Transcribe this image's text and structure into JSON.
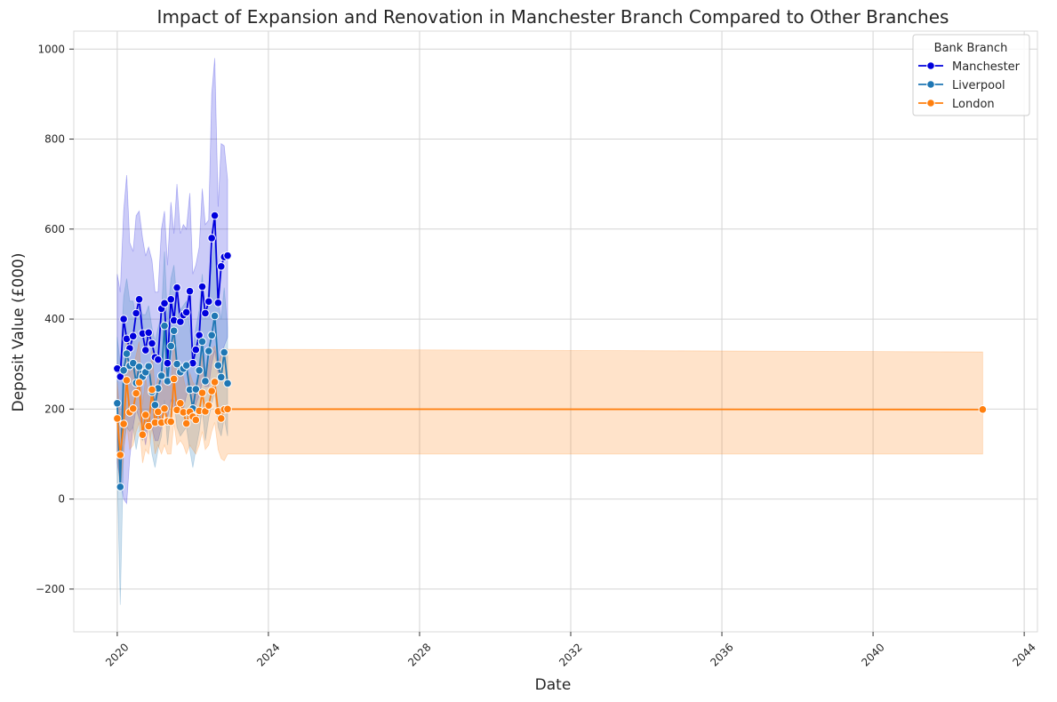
{
  "chart_data": {
    "type": "line",
    "title": "Impact of Expansion and Renovation in Manchester Branch Compared to Other Branches",
    "xlabel": "Date",
    "ylabel": "Deposit Value (£000)",
    "xlim": [
      2018.85,
      2044.35
    ],
    "ylim": [
      -295,
      1040
    ],
    "x_ticks": [
      2020,
      2024,
      2028,
      2032,
      2036,
      2040,
      2044
    ],
    "x_tick_labels": [
      "2020",
      "2024",
      "2028",
      "2032",
      "2036",
      "2040",
      "2044"
    ],
    "y_ticks": [
      -200,
      0,
      200,
      400,
      600,
      800,
      1000
    ],
    "y_tick_labels": [
      "−200",
      "0",
      "200",
      "400",
      "600",
      "800",
      "1000"
    ],
    "grid": true,
    "legend": {
      "title": "Bank Branch",
      "position": "top-right"
    },
    "series": [
      {
        "name": "Manchester",
        "color": "#0000dd",
        "x": [
          2020.0,
          2020.08,
          2020.17,
          2020.25,
          2020.33,
          2020.42,
          2020.5,
          2020.58,
          2020.67,
          2020.75,
          2020.83,
          2020.92,
          2021.0,
          2021.08,
          2021.17,
          2021.25,
          2021.33,
          2021.42,
          2021.5,
          2021.58,
          2021.67,
          2021.75,
          2021.83,
          2021.92,
          2022.0,
          2022.08,
          2022.17,
          2022.25,
          2022.33,
          2022.42,
          2022.5,
          2022.58,
          2022.67,
          2022.75,
          2022.83,
          2022.92
        ],
        "values": [
          290,
          272,
          400,
          356,
          335,
          362,
          413,
          444,
          368,
          331,
          370,
          346,
          315,
          310,
          423,
          435,
          302,
          444,
          397,
          470,
          394,
          409,
          415,
          462,
          302,
          332,
          364,
          472,
          413,
          439,
          580,
          630,
          436,
          517,
          538,
          541
        ],
        "lower": [
          80,
          40,
          0,
          -10,
          90,
          160,
          200,
          180,
          160,
          120,
          170,
          160,
          130,
          130,
          160,
          200,
          180,
          220,
          200,
          220,
          210,
          200,
          230,
          250,
          190,
          210,
          230,
          260,
          250,
          250,
          300,
          330,
          280,
          320,
          340,
          360
        ],
        "upper": [
          500,
          460,
          640,
          720,
          570,
          550,
          630,
          640,
          580,
          540,
          560,
          530,
          460,
          460,
          600,
          640,
          520,
          660,
          590,
          700,
          590,
          610,
          600,
          680,
          500,
          520,
          560,
          690,
          610,
          620,
          900,
          980,
          650,
          790,
          785,
          710
        ]
      },
      {
        "name": "Liverpool",
        "color": "#1f77b4",
        "x": [
          2020.0,
          2020.08,
          2020.17,
          2020.25,
          2020.33,
          2020.42,
          2020.5,
          2020.58,
          2020.67,
          2020.75,
          2020.83,
          2020.92,
          2021.0,
          2021.08,
          2021.17,
          2021.25,
          2021.33,
          2021.42,
          2021.5,
          2021.58,
          2021.67,
          2021.75,
          2021.83,
          2021.92,
          2022.0,
          2022.08,
          2022.17,
          2022.25,
          2022.33,
          2022.42,
          2022.5,
          2022.58,
          2022.67,
          2022.75,
          2022.83,
          2022.92
        ],
        "values": [
          213,
          27,
          286,
          323,
          296,
          302,
          258,
          294,
          272,
          282,
          295,
          238,
          209,
          246,
          274,
          385,
          262,
          340,
          374,
          300,
          282,
          290,
          297,
          243,
          201,
          244,
          286,
          350,
          262,
          329,
          364,
          407,
          297,
          271,
          326,
          257
        ],
        "lower": [
          60,
          -235,
          120,
          160,
          150,
          160,
          110,
          150,
          130,
          150,
          160,
          100,
          70,
          110,
          140,
          220,
          120,
          190,
          220,
          160,
          140,
          150,
          160,
          110,
          70,
          110,
          150,
          200,
          130,
          180,
          210,
          240,
          160,
          140,
          180,
          140
        ],
        "upper": [
          360,
          300,
          450,
          490,
          440,
          440,
          400,
          430,
          410,
          410,
          430,
          380,
          350,
          380,
          410,
          550,
          400,
          490,
          520,
          440,
          420,
          430,
          440,
          380,
          330,
          380,
          420,
          500,
          400,
          470,
          520,
          570,
          440,
          400,
          470,
          380
        ]
      },
      {
        "name": "London",
        "color": "#ff7f0e",
        "x": [
          2020.0,
          2020.08,
          2020.17,
          2020.25,
          2020.33,
          2020.42,
          2020.5,
          2020.58,
          2020.67,
          2020.75,
          2020.83,
          2020.92,
          2021.0,
          2021.08,
          2021.17,
          2021.25,
          2021.33,
          2021.42,
          2021.5,
          2021.58,
          2021.67,
          2021.75,
          2021.83,
          2021.92,
          2022.0,
          2022.08,
          2022.17,
          2022.25,
          2022.33,
          2022.42,
          2022.5,
          2022.58,
          2022.67,
          2022.75,
          2022.83,
          2022.92,
          2042.9
        ],
        "values": [
          179,
          98,
          167,
          264,
          193,
          201,
          235,
          259,
          143,
          187,
          162,
          243,
          170,
          194,
          170,
          201,
          173,
          172,
          267,
          198,
          213,
          193,
          168,
          194,
          183,
          176,
          196,
          236,
          195,
          208,
          240,
          260,
          195,
          179,
          199,
          200,
          199
        ],
        "lower": [
          100,
          20,
          100,
          170,
          110,
          120,
          150,
          170,
          80,
          110,
          100,
          160,
          100,
          120,
          100,
          120,
          100,
          100,
          170,
          120,
          130,
          120,
          100,
          120,
          110,
          100,
          120,
          150,
          110,
          120,
          150,
          170,
          110,
          90,
          85,
          100,
          100
        ],
        "upper": [
          260,
          180,
          240,
          360,
          280,
          290,
          320,
          350,
          210,
          270,
          230,
          330,
          240,
          270,
          240,
          290,
          250,
          250,
          360,
          280,
          300,
          270,
          240,
          280,
          260,
          250,
          280,
          320,
          280,
          300,
          330,
          340,
          300,
          320,
          335,
          333,
          327
        ]
      }
    ]
  }
}
